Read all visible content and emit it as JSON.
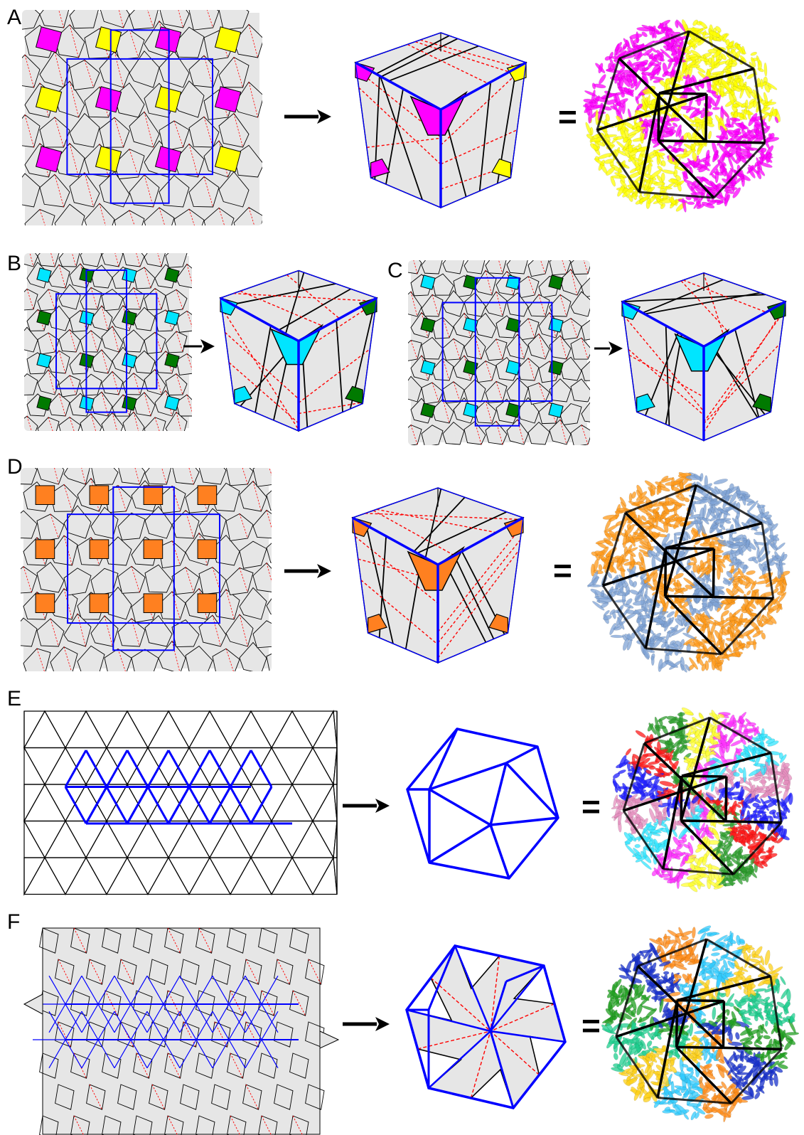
{
  "panels": [
    {
      "id": "A",
      "label": "A",
      "operator": "=",
      "cap_color": "#ff00ff",
      "side_color": "#ffff00",
      "result": "cube"
    },
    {
      "id": "B",
      "label": "B",
      "cap_color": "#00e5ff",
      "side_color": "#007a00",
      "result": "cube"
    },
    {
      "id": "C",
      "label": "C",
      "cap_color": "#00e5ff",
      "side_color": "#007a00",
      "result": "cube"
    },
    {
      "id": "D",
      "label": "D",
      "operator": "=",
      "cap_color": "#ff8020",
      "side_color": "#ff8020",
      "result": "cube"
    },
    {
      "id": "E",
      "label": "E",
      "operator": "=",
      "result": "icosahedron"
    },
    {
      "id": "F",
      "label": "F",
      "operator": "=",
      "result": "icosahedron"
    }
  ],
  "colors": {
    "tile_fill": "#e6e6e6",
    "tile_edge": "#000000",
    "fold_line": "#ff0000",
    "lattice_line": "#0000ff"
  },
  "protein_palettes": {
    "A": [
      "#ff00ff",
      "#ffff00"
    ],
    "D": [
      "#ff9a1a",
      "#7fa3d6"
    ],
    "E": [
      "#2020ff",
      "#ff1a1a",
      "#2e9e2e",
      "#ffff33",
      "#ff33ff",
      "#33e6ff",
      "#e68fbf"
    ],
    "F": [
      "#22a022",
      "#1a33cc",
      "#ff8c1a",
      "#33ccff",
      "#ffd21a",
      "#1fcf8f"
    ]
  }
}
